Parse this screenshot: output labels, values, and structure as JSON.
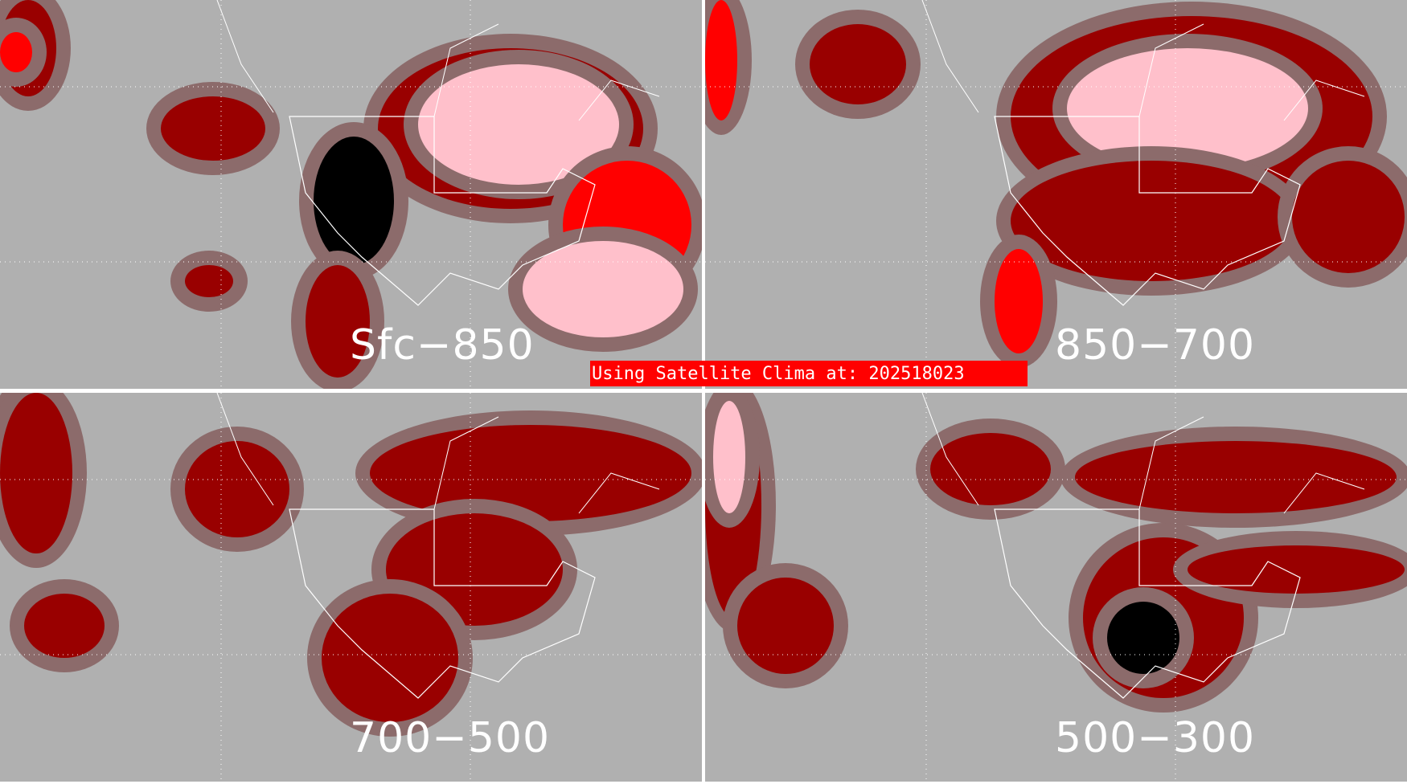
{
  "panels": [
    {
      "label": "Sfc−850"
    },
    {
      "label": "850−700"
    },
    {
      "label": "700−500"
    },
    {
      "label": "500−300"
    }
  ],
  "banner": {
    "text": "Using Satellite Clima at: 202518023"
  },
  "colors": {
    "background": "#b0b0b0",
    "low": "#8c6b6b",
    "dark_red": "#990000",
    "pink": "#ffc0cb",
    "red": "#ff0000",
    "black": "#000000",
    "outline": "#ffffff"
  }
}
